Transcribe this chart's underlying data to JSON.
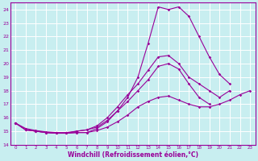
{
  "bg_color": "#c8eef0",
  "line_color": "#990099",
  "grid_color": "#ffffff",
  "xlabel": "Windchill (Refroidissement éolien,°C)",
  "xlim": [
    -0.5,
    23.5
  ],
  "ylim": [
    14.0,
    24.5
  ],
  "yticks": [
    14,
    15,
    16,
    17,
    18,
    19,
    20,
    21,
    22,
    23,
    24
  ],
  "xticks": [
    0,
    1,
    2,
    3,
    4,
    5,
    6,
    7,
    8,
    9,
    10,
    11,
    12,
    13,
    14,
    15,
    16,
    17,
    18,
    19,
    20,
    21,
    22,
    23
  ],
  "lines": [
    [
      15.6,
      15.1,
      15.0,
      14.9,
      14.85,
      14.85,
      14.9,
      14.9,
      15.05,
      15.3,
      15.7,
      16.2,
      16.8,
      17.2,
      17.5,
      17.6,
      17.3,
      17.0,
      16.8,
      16.8,
      17.0,
      17.3,
      17.7,
      18.0
    ],
    [
      15.6,
      15.1,
      15.0,
      14.9,
      14.85,
      14.85,
      15.0,
      15.1,
      15.3,
      15.8,
      16.5,
      17.2,
      18.0,
      18.8,
      19.8,
      20.0,
      19.6,
      18.5,
      17.5,
      17.0,
      null,
      null,
      null,
      null
    ],
    [
      15.6,
      15.2,
      15.05,
      14.95,
      14.9,
      14.9,
      15.0,
      15.1,
      15.4,
      16.0,
      16.8,
      17.7,
      18.5,
      19.5,
      20.5,
      20.6,
      20.0,
      19.0,
      18.5,
      18.0,
      17.5,
      18.0,
      null,
      null
    ],
    [
      15.6,
      15.1,
      15.0,
      14.9,
      14.85,
      14.85,
      14.9,
      14.9,
      15.2,
      15.7,
      16.5,
      17.5,
      19.0,
      21.5,
      24.2,
      24.0,
      24.2,
      23.5,
      22.0,
      20.5,
      19.2,
      18.5,
      null,
      null
    ]
  ]
}
